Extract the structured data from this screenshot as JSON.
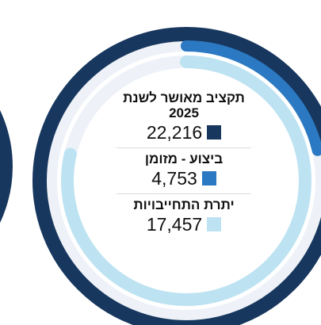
{
  "chart_data": {
    "type": "radial",
    "categories": [
      "תקציב מאושר לשנת 2025",
      "ביצוע - מזומן",
      "יתרת התחייבויות"
    ],
    "values": [
      22216,
      4753,
      17457
    ],
    "value_labels": [
      "22,216",
      "4,753",
      "17,457"
    ],
    "colors": [
      "#17375e",
      "#2b79c2",
      "#bde3f2"
    ]
  }
}
